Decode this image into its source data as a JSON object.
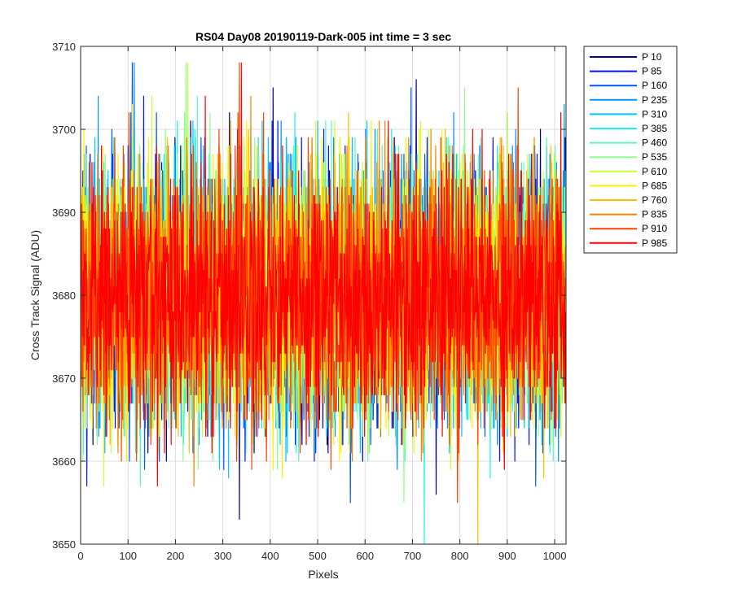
{
  "chart_data": {
    "type": "line",
    "title": "RS04 Day08 20190119-Dark-005 int time = 3 sec",
    "xlabel": "Pixels",
    "ylabel": "Cross Track Signal (ADU)",
    "xlim": [
      0,
      1024
    ],
    "ylim": [
      3650,
      3710
    ],
    "xticks": [
      "0",
      "100",
      "200",
      "300",
      "400",
      "500",
      "600",
      "700",
      "800",
      "900",
      "1000"
    ],
    "yticks": [
      "3650",
      "3660",
      "3670",
      "3680",
      "3690",
      "3700",
      "3710"
    ],
    "grid": true,
    "legend_position": "outside-top-right",
    "noise_model": {
      "mean": 3680,
      "std": 7.5,
      "n_points": 1024
    },
    "series": [
      {
        "name": "P 10",
        "color": "#00008f"
      },
      {
        "name": "P 85",
        "color": "#0014ff"
      },
      {
        "name": "P 160",
        "color": "#0058ff"
      },
      {
        "name": "P 235",
        "color": "#0094ff"
      },
      {
        "name": "P 310",
        "color": "#00c8ff"
      },
      {
        "name": "P 385",
        "color": "#1ef0f0"
      },
      {
        "name": "P 460",
        "color": "#5cf5c0"
      },
      {
        "name": "P 535",
        "color": "#90ff90"
      },
      {
        "name": "P 610",
        "color": "#c8ff38"
      },
      {
        "name": "P 685",
        "color": "#fff200"
      },
      {
        "name": "P 760",
        "color": "#ffbf00"
      },
      {
        "name": "P 835",
        "color": "#ff8000"
      },
      {
        "name": "P 910",
        "color": "#ff4400"
      },
      {
        "name": "P 985",
        "color": "#ff0000"
      }
    ]
  }
}
